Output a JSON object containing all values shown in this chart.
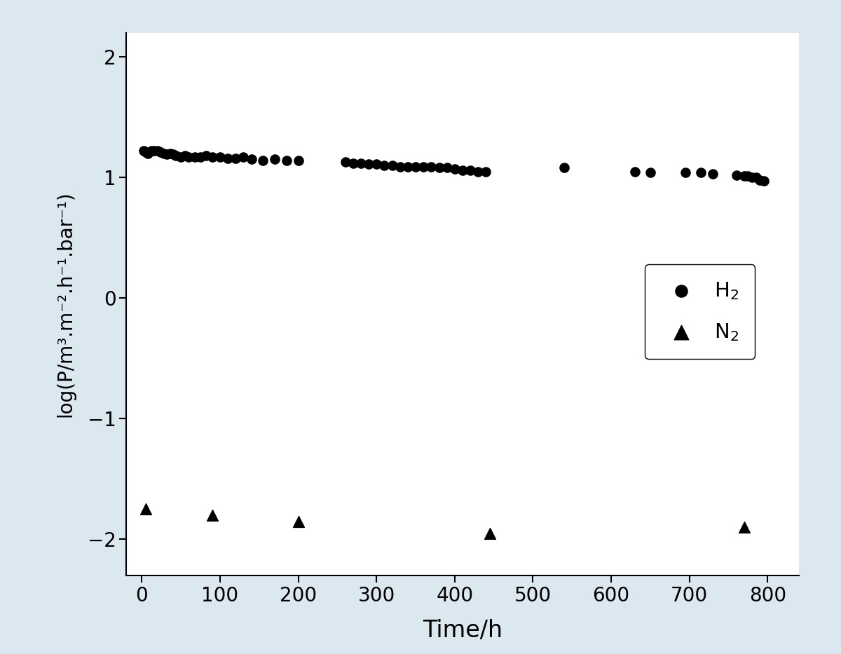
{
  "h2_x": [
    2,
    5,
    8,
    12,
    16,
    20,
    24,
    28,
    32,
    36,
    40,
    44,
    50,
    55,
    60,
    68,
    75,
    82,
    90,
    100,
    110,
    120,
    130,
    140,
    155,
    170,
    185,
    200,
    260,
    270,
    280,
    290,
    300,
    310,
    320,
    330,
    340,
    350,
    360,
    370,
    380,
    390,
    400,
    410,
    420,
    430,
    440,
    540,
    630,
    650,
    695,
    715,
    730,
    760,
    770,
    775,
    780,
    785,
    790,
    795
  ],
  "h2_y": [
    1.22,
    1.21,
    1.2,
    1.22,
    1.22,
    1.22,
    1.21,
    1.2,
    1.19,
    1.2,
    1.19,
    1.18,
    1.17,
    1.18,
    1.17,
    1.17,
    1.17,
    1.18,
    1.17,
    1.17,
    1.16,
    1.16,
    1.17,
    1.15,
    1.14,
    1.15,
    1.14,
    1.14,
    1.13,
    1.12,
    1.12,
    1.11,
    1.11,
    1.1,
    1.1,
    1.09,
    1.09,
    1.09,
    1.09,
    1.09,
    1.08,
    1.08,
    1.07,
    1.06,
    1.06,
    1.05,
    1.05,
    1.08,
    1.05,
    1.04,
    1.04,
    1.04,
    1.03,
    1.02,
    1.01,
    1.01,
    1.0,
    1.0,
    0.98,
    0.97
  ],
  "n2_x": [
    5,
    90,
    200,
    445,
    770
  ],
  "n2_y": [
    -1.75,
    -1.8,
    -1.85,
    -1.95,
    -1.9
  ],
  "xlabel": "Time/h",
  "ylabel": "log(P/m³.m⁻².h⁻¹.bar⁻¹)",
  "xlim": [
    -20,
    840
  ],
  "ylim": [
    -2.3,
    2.2
  ],
  "xticks": [
    0,
    100,
    200,
    300,
    400,
    500,
    600,
    700,
    800
  ],
  "yticks": [
    -2,
    -1,
    0,
    1,
    2
  ],
  "legend_h2": "H$_2$",
  "legend_n2": "N$_2$",
  "figure_bg_color": "#dce8f0",
  "plot_bg_color": "#ffffff",
  "marker_color": "black",
  "marker_size_circle": 90,
  "marker_size_triangle": 130
}
